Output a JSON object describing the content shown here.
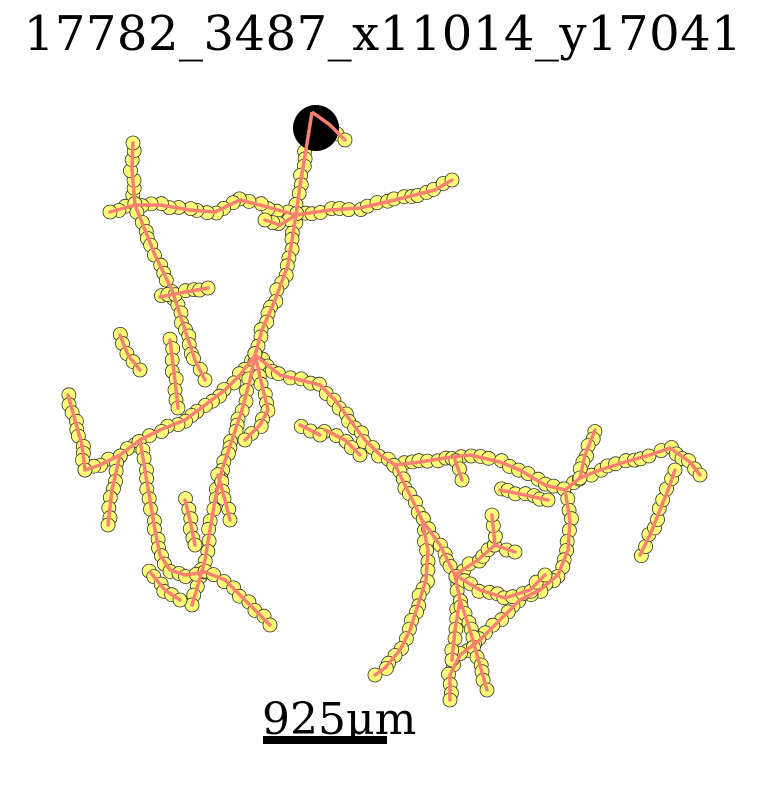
{
  "title": "17782_3487_x11014_y17041",
  "scale_bar": {
    "label": "925μm"
  },
  "colors": {
    "branch": "#fa8072",
    "node_fill": "#ffff77",
    "node_stroke": "#333333",
    "soma": "#000000",
    "background": "#ffffff"
  }
}
